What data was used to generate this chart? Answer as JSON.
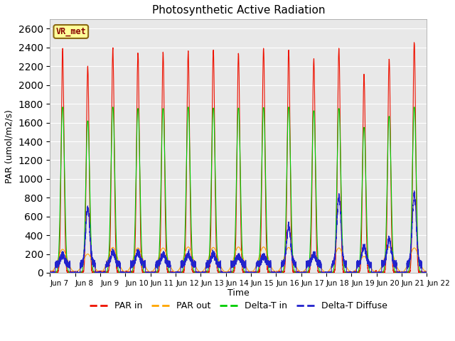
{
  "title": "Photosynthetic Active Radiation",
  "ylabel": "PAR (umol/m2/s)",
  "xlabel": "Time",
  "ylim": [
    0,
    2700
  ],
  "yticks": [
    0,
    200,
    400,
    600,
    800,
    1000,
    1200,
    1400,
    1600,
    1800,
    2000,
    2200,
    2400,
    2600
  ],
  "label_box": "VR_met",
  "colors": {
    "par_in": "#EE1100",
    "par_out": "#FFA500",
    "delta_t_in": "#00CC00",
    "delta_t_diffuse": "#2222CC"
  },
  "legend_labels": [
    "PAR in",
    "PAR out",
    "Delta-T in",
    "Delta-T Diffuse"
  ],
  "background_color": "#E8E8E8",
  "n_days": 15,
  "x_tick_labels": [
    "Jun 7",
    "Jun 8",
    "Jun 9",
    "Jun 10",
    "Jun 11",
    "Jun 12",
    "Jun 13",
    "Jun 14",
    "Jun 15",
    "Jun 16",
    "Jun 17",
    "Jun 18",
    "Jun 19",
    "Jun 20",
    "Jun 21",
    "Jun 22"
  ],
  "day_peaks_par_in": [
    2380,
    2200,
    2390,
    2350,
    2340,
    2350,
    2370,
    2340,
    2390,
    2380,
    2280,
    2390,
    2110,
    2280,
    2460
  ],
  "day_peaks_par_out": [
    250,
    200,
    270,
    265,
    265,
    275,
    270,
    275,
    275,
    270,
    200,
    265,
    175,
    275,
    265
  ],
  "day_peaks_delta_t_in": [
    1800,
    1650,
    1800,
    1785,
    1785,
    1800,
    1790,
    1790,
    1795,
    1800,
    1760,
    1785,
    1580,
    1700,
    1800
  ],
  "day_peaks_delta_t_diffuse": [
    100,
    600,
    130,
    130,
    110,
    110,
    110,
    85,
    85,
    410,
    110,
    730,
    190,
    270,
    740
  ]
}
